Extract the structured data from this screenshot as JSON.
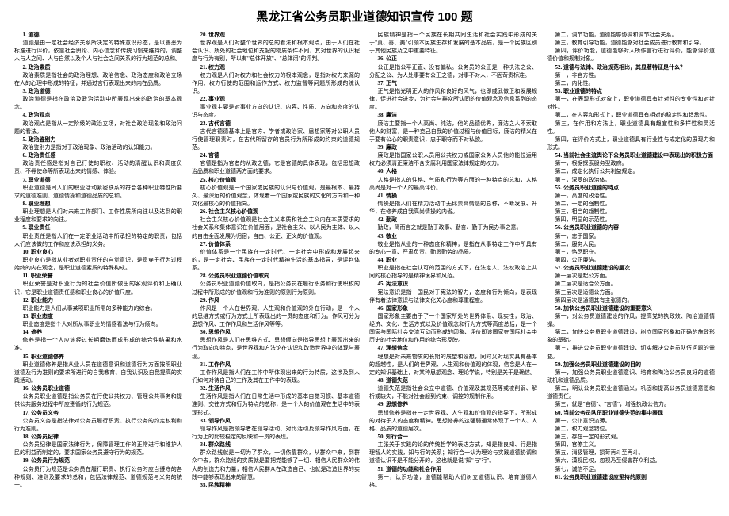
{
  "title": "黑龙江省公务员职业道德知识宣传 100 题",
  "items": [
    {
      "n": "1",
      "h": "道德",
      "b": "道德是由一定社会经济关系所决定的特殊意识形态，是以善恶为标准进行评价，依靠社会舆论、内心信念和传统习惯来维持的，调整人与人之间、人与自然以及个人与社会之间关系的行为规范的总和。"
    },
    {
      "n": "2",
      "h": "政治素质",
      "b": "政治素质是指社会的政治理想、政治信念、政治态度和政治立场在人的心理中形成的特征，并通过言行表现出来的内在品质。"
    },
    {
      "n": "3",
      "h": "政治道德",
      "b": "政治道德是指在政治及政治活动中所表现出来的政治的基本观念。"
    },
    {
      "n": "4",
      "h": "政治观点",
      "b": "政治观点是指从一定阶级的政治立场，对社会政治现象和政治问题的看法。"
    },
    {
      "n": "5",
      "h": "政治鉴别力",
      "b": "政治鉴别力是指对于政治现象、政治活动的认知能力。"
    },
    {
      "n": "6",
      "h": "政治责任感",
      "b": "政治责任感是指对自己行使的职权、活动的清醒认识和高度负责、不辱使命等所表现出来的情感、体验。"
    },
    {
      "n": "7",
      "h": "职业道德",
      "b": "职业道德是同人们的职业活动紧密联系的符合各种职业特性所要求的道德准则、道德情操和道德品质的总和。"
    },
    {
      "n": "8",
      "h": "职业理想",
      "b": "职业理想是人们对未来工作部门、工作性质所向往以及达到的职业程度和要求的向往。"
    },
    {
      "n": "9",
      "h": "职业责任",
      "b": "职业责任是指人们在一定职业活动中所承担的特定的职责，包括人们应该做的工作和应该承担的义务。"
    },
    {
      "n": "10",
      "h": "职业良心",
      "b": "职业良心是指从业者对职业责任的自觉意识，是贯穿于行为过程始终的内在观念，是职业道德素质的特殊构成。"
    },
    {
      "n": "11",
      "h": "职业荣誉",
      "b": "职业荣誉是对职业行为的社会价值所做出的客观评价和正确认识，它是职业道德责任感和职业良心的价值尺度。"
    },
    {
      "n": "12",
      "h": "职业能力",
      "b": "职业能力是人们从事某项职业所需的多种能力的综合。"
    },
    {
      "n": "13",
      "h": "职业态度",
      "b": "职业态度是指个人对所从事职业的情感看法与行为倾向。"
    },
    {
      "n": "14",
      "h": "修养",
      "b": "修养是指一个人应该经过长期磨炼而成形成的综合性结果和水准。"
    },
    {
      "n": "15",
      "h": "职业道德修养",
      "b": "职业道德修养是指从业人员在道德意识和道德行为方面按照职业道德及行为准则的要求所进行的自我教育、自我认识及自我提高的实践活动。"
    },
    {
      "n": "16",
      "h": "公务员职业道德",
      "b": "公务员职业道德是指公务员在行使公共权力、管理公共事务和提供公共服务过程中所应遵循的行为规范。"
    },
    {
      "n": "17",
      "h": "公务员义务",
      "b": "公务员义务是指法律对公务员履行职责、执行公务的约定权利和行为准则。"
    },
    {
      "n": "18",
      "h": "公务员纪律",
      "b": "公务员纪律是国家法律行为，保障管理工作的正常进行和维护人民的利益而制定的，要求国家公务员遵守行为的规范。"
    },
    {
      "n": "19",
      "h": "公务员行为规范",
      "b": "公务员行为规范是公务员在履行职责、执行公务时应当遵守的各种规则、准则及要求的总和，包括法律规范、道德规范与义务的统一。"
    },
    {
      "n": "20",
      "h": "世界观",
      "b": "世界观是人们对整个世界的总的看法和根本观点，由于人们在社会认识、所处的社会地位和支配的物质条件不同，其对世界的认识程度与行为有别，所以有\"总体开放\"、\"总体闭\"的评判。"
    },
    {
      "n": "21",
      "h": "权力观",
      "b": "权力观是人们对权力和社会权力的根本观念，是指对权力来源的作用、权力行使的范围和运作方式、权力监督等问题所形成的统认识。"
    },
    {
      "n": "22",
      "h": "事业观",
      "b": "事业观主要是对事业方向的认识、内容、性质、方向和态度的认识与态度。"
    },
    {
      "n": "23",
      "h": "古代言德",
      "b": "古代言德德基本上是官方、学者或政治家、思想家等对公职人员行使管理职责时，在古代所留存的官员行为所形成的约束的道德规范。"
    },
    {
      "n": "24",
      "h": "官德",
      "b": "官德是指为官者的从政之德，它是官德的具体表现，包括思想政治品质和职业道德两方面的要求。"
    },
    {
      "n": "25",
      "h": "核心价值观",
      "b": "核心价值观是一个国家或民族的认识与价值观，是最根本、最持久、最深远的价值观念，体现着一个国家或民族的文化的方向和一种文化最核心的价值指向。"
    },
    {
      "n": "26",
      "h": "社会主义核心价值观",
      "b": "社会主义核心价值观是社会主义本质和社会主义内在本质要求的社会关系和集体意识在价值层面，是社会主义、以人民为主体、以人的自由全面发展为归宿，自由、公正、正义的价值观。"
    },
    {
      "n": "27",
      "h": "价值体系",
      "b": "价值体系是一个民族在一定时代、一定社会中形成和发展起来的，是一定社会、民族在一定时代精神生活的基本指导，是评判体系。"
    },
    {
      "n": "28",
      "h": "公务员职业道德价值取向",
      "b": "公务员职业道德价值取向，是指公务员在履行职务和行使职权的过程中所形成的价值观和行为准则的原则行为原则。"
    },
    {
      "n": "29",
      "h": "作风",
      "b": "作风是一个人在世界观、人生观和价值观的外在行动，是一个人的思维方式或行为方式上所表现出的一贯的态度和行为。作风可分为思想作风、工作作风和生活作风等等。"
    },
    {
      "n": "30",
      "h": "思想作风",
      "b": "思想作风是人们在思维方式、思想倾向是指导思想上表现出来的行为取向和特点，是世界观和方法论在认识和改造世界中的体现与表现。"
    },
    {
      "n": "31",
      "h": "工作作风",
      "b": "工作作风是指人们在工作中所体现出来的行为特质，这涉及到人们如何对待自己的工作及其在工作中的表现。"
    },
    {
      "n": "32",
      "h": "生活作风",
      "b": "生活作风是指人们在日常生活中形成的基本自觉习惯、基本道德准则、交往方式和行为特点的总称，是一个人的价值观在生活中的表现形式。"
    },
    {
      "n": "33",
      "h": "领导作风",
      "b": "领导作风是指领导者在领导活动、对比活动及领导作风方面，在行为上的比较稳定的反映和一贯的表现。"
    },
    {
      "n": "34",
      "h": "群众路线",
      "b": "群众路线就是一切为了群众，一切依靠群众，从群众中来，到群众中去，群众路线的实质就是要把党能够了一切、相信人民群众的伟大的创造力和力量，相信人民群众在改造自己、也就是改造世界的实践中能够表现出来的智慧。"
    },
    {
      "n": "35",
      "h": "民族精神",
      "b": null
    },
    {
      "n": null,
      "h": null,
      "b": "民族精神是指一个民族在长期共同生活和社会实践中形成的关于\"真、善、美\"引领本民族生存和发展的基本品质，是一个民族区别于其他民族及之中重要特征。"
    },
    {
      "n": "36",
      "h": "公正",
      "b": "公正是指公平正直、没有偏私。公务员的公正是一种执法之公、分配之公、为人处事要有公正之德，对事不对人，不因苛责标准。"
    },
    {
      "n": "37",
      "h": "正气",
      "b": "正气是指光明正大的作风和良好的风气，也即威武做正和发展规律，促进社会进步，为社会与群众所认同的价值观念及信息系列的态度。"
    },
    {
      "n": "38",
      "h": "廉洁",
      "b": "廉洁主要指一个人高尚、纯洁，他的品德优秀，廉洁之人不索取他人的财富，是一种克己自我的价值过程与价值目标，廉洁的精义在于要有公心的职责意识，忠于职守而不对私欲。"
    },
    {
      "n": "39",
      "h": "廉政",
      "b": "廉政是指国家公职人员用公共权力或国家公务人员他的能位运用权力必须清正廉洁不含贪腐利用国家法律规定的权力。"
    },
    {
      "n": "40",
      "h": "人格",
      "b": "人格是指人的性格、气质和行为等方面的一种特点的总和，人格高尚是对一个人的最高评价。"
    },
    {
      "n": "41",
      "h": "情操",
      "b": "情操是指人们在精力活动中无比崇高情感的总称，不断发展、升华，在修养成自我高尚情操的内省。"
    },
    {
      "n": "42",
      "h": "勤政",
      "b": "勤政，简而言之就是勤于政事、勤奋、勤于为民办事之意。"
    },
    {
      "n": "43",
      "h": "敬业",
      "b": "敬业是指从业的一种态度和精神，是指在从事特定工作中所具有的专心一意、严肃负责、勤恳勤劳的品质。"
    },
    {
      "n": "44",
      "h": "职业",
      "b": "职业是指在社会认可的范围的方式下，在法定人、法权政治上共同的核心指导的是精神境界和风范。"
    },
    {
      "n": "45",
      "h": "宪法意识",
      "b": "宪法意识是指一国民对于宪法的智力，态度和行为倾向，是表现伴有着法律意识与法律文化关心度和尊重程度。"
    },
    {
      "n": "46",
      "h": "国家形象",
      "b": "国家形象主要由于了一个国家所处的世界体系、现实性，政治、经济、文化、生活方式以及价值观念和行为方式等高度总括，是一个国家与国际社会交流互动而形成的印象、评价即该国家在国际社会中历史的社会地位和作用的综合形反映。"
    },
    {
      "n": "47",
      "h": "理想信念",
      "b": "理想是对未来物质的长期的展望和设想，同时又对现实具有基本的超越性，是人们的世界观、人生观和价值观的体现，信念是人在一定的知识基础上，对某种思想观念、理论学说，特别是关于是确信。"
    },
    {
      "n": "48",
      "h": "道德失范",
      "b": "道德失范是指社会公立中道德、价值观及其规范等或被削弱、解析或缺失，不能对社会起到约束、调控的规制作用。"
    },
    {
      "n": "49",
      "h": "思想修养",
      "b": "思想修养是指在一定世界观、人生观和价值观的指导下，所形成的对待于人的态度和精神。思想修养的这强弱通常体现了一个人、人格、品质的道德层次。"
    },
    {
      "n": "50",
      "h": "知行合一",
      "b": "主张关于实践的论的传统哲学的表达方式，知是指良知、行是指理智人的实践，知与行的关系；知行合一认为理论与实践道德协调和道德认识不是不能分开的，这也就是说\"知\"与\"行\"。"
    },
    {
      "n": "51",
      "h": "道德的功能和社会作用",
      "b": "第一，认识功能，道德能帮助人们树立道德认识、培育道德人格。\n第二，调节功能，道德能够协调和调节社会关系。\n第三，教育引导功能，道德能够对社会成员进行教育和引导。\n第四，评价功能，道德能够对人所作言行进行评价，能够评价道德价值和规制对象。"
    },
    {
      "n": "52",
      "h": "道德与法律、政治规范相比，其显著特征是什么？",
      "b": "第一，非官方性。\n第二，内化性。"
    },
    {
      "n": "53",
      "h": "职业道德的特点",
      "b": "第一，在表现形式对象上，职业道德具有针对性的专业性和对针对性。\n第二，在内容和形式上，职业道德具有相对的稳定性和趋承性。\n第三，在作用和方法上，职业道德具有趋宜性和多样性和灵活性。\n第四，在评价方式上，职业道德具有行业性与成定化的展现力和形式。"
    },
    {
      "n": "54",
      "h": "当前社会主流舆论下公务员职业道德建设中表现出的积极方面",
      "b": "第一，根据探索服务型政府。\n第二，成定化执行公共利益规定。\n第三，深受的政治体。"
    },
    {
      "n": "55",
      "h": "公务员职业道德的特点",
      "b": "第一，高度的政治性。\n第二，一定的强制性。\n第三，相当的趋制性。\n第四，明显的示范性。"
    },
    {
      "n": "56",
      "h": "公务员职业道德的内容",
      "b": "第一，忠于国家。\n第二，服务人民。\n第三，恪尽职守。\n第四，公正廉洁。"
    },
    {
      "n": "57",
      "h": "公务员职业道德建设的层次",
      "b": "第一层次是起公方面。\n第二层次是适合公方面。\n第三层次是适德公方面。\n第四层次是通德其有主张德的。"
    },
    {
      "n": "58",
      "h": "加快公务员职业道德建设的重要意义",
      "b": "第一，对公务员道德建设的作风，提高党的执政效、陶冶道德情操。\n第二，加快公务员职业道德建设，树立国家形象和正确的施政形象的基础。\n第三，推进公务员职业道德建设、切实解决公务员队伍问题的需要。"
    },
    {
      "n": "59",
      "h": "加强公务员职业道德建设的目的",
      "b": "第一，加强公务员职业道德意识、培育和陶冶公务员良好的道德动机和道德品质。\n第二，明认公务员职业道德涵义，巩固和提高公务员道德意愿和道德责任。\n第三，就是\"官德\"、\"言德\"，增强执政公信力。"
    },
    {
      "n": "60",
      "h": "当前公务员队伍职业道德失范的集中表现",
      "b": "第一，公仆意识淡薄。\n第二，权力观念错位。\n第三，存在一定的形式观。\n第四，官僚主义。\n第五，消极管理，损苛再斗至再斗。\n第六，漠视民权，忽视乃至侵害群众利益。\n第七，诚信不足。"
    },
    {
      "n": "61",
      "h": "公务员职业道德建设应坚持的原则",
      "b": null
    }
  ]
}
